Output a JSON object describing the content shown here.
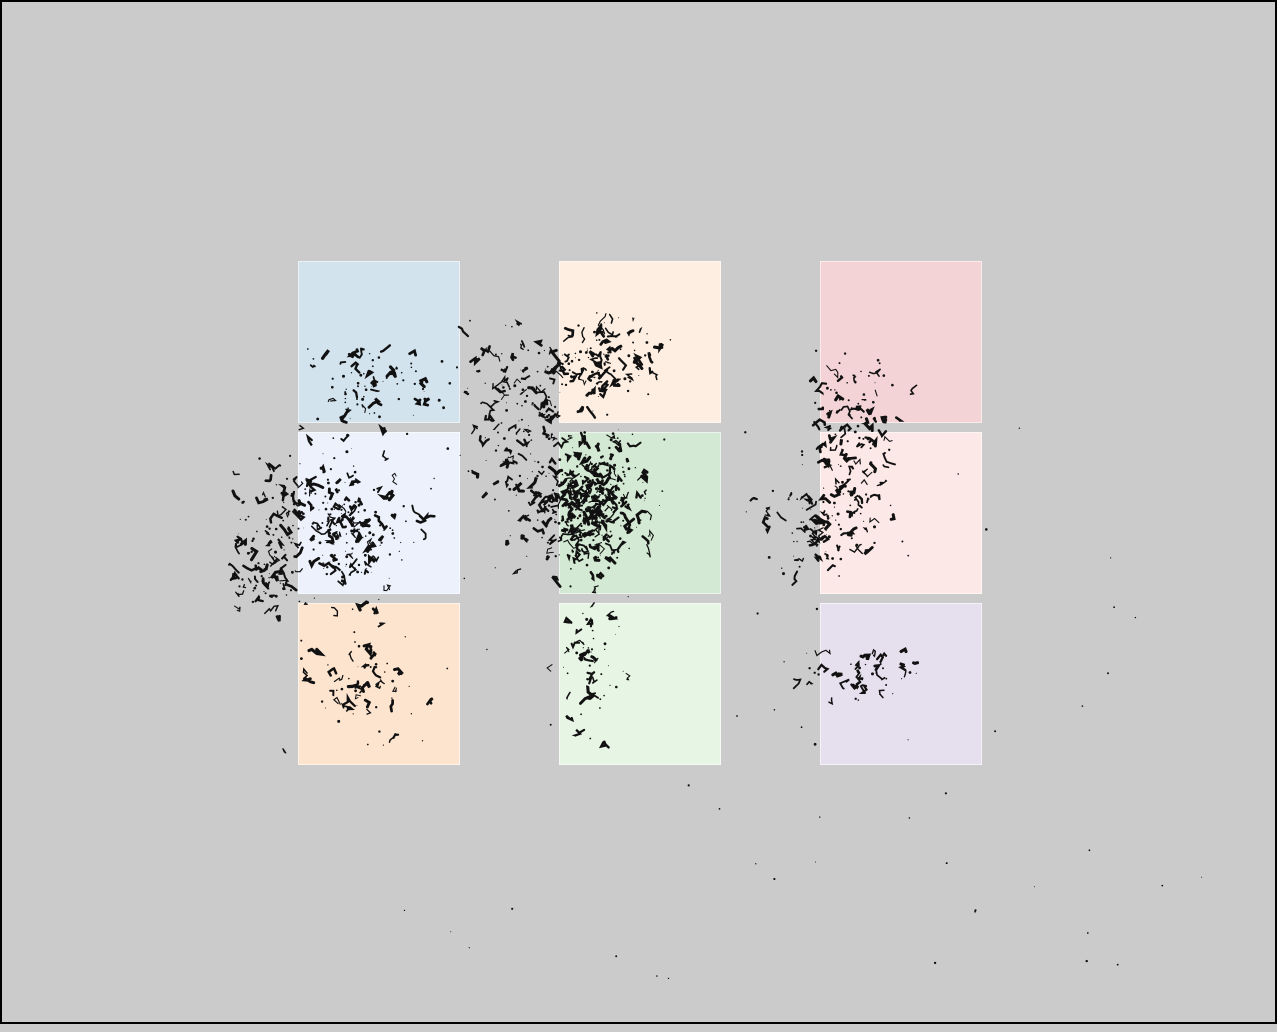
{
  "canvas": {
    "background": "#cbcbcb",
    "border": "#000000",
    "scatter_color": "#111111"
  },
  "panels": [
    {
      "id": "r1c1",
      "color": "#d2e3ee"
    },
    {
      "id": "r1c2",
      "color": "#fdeee1"
    },
    {
      "id": "r1c3",
      "color": "#f3d3d6"
    },
    {
      "id": "r2c1",
      "color": "#ecf1fb"
    },
    {
      "id": "r2c2",
      "color": "#d3e9d3"
    },
    {
      "id": "r2c3",
      "color": "#fde8e8"
    },
    {
      "id": "r3c1",
      "color": "#fde4cf"
    },
    {
      "id": "r3c2",
      "color": "#e7f5e4"
    },
    {
      "id": "r3c3",
      "color": "#e6dfee"
    }
  ]
}
